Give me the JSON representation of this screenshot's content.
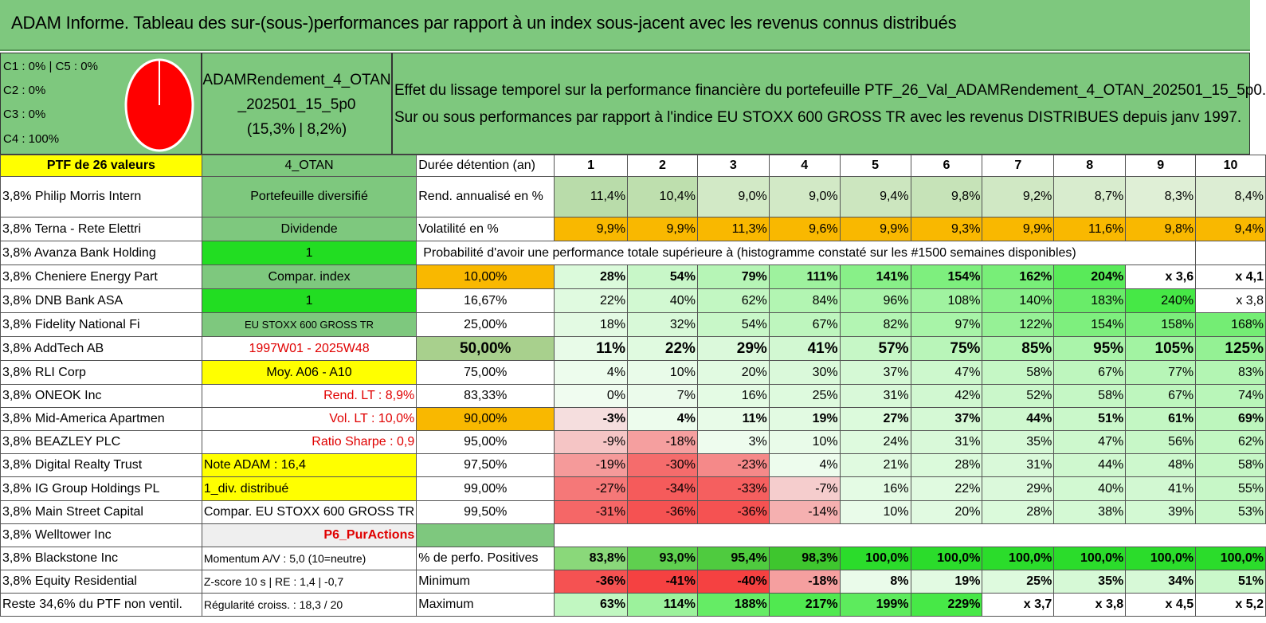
{
  "title": "ADAM Informe. Tableau des sur-(sous-)performances par rapport à un index sous-jacent avec les revenus connus distribués",
  "legend": [
    "C1 : 0% | C5 : 0%",
    "C2 : 0%",
    "C3 : 0%",
    "C4 : 100%"
  ],
  "pie_colors": {
    "fill": "#ff0000",
    "edge": "#ffffff"
  },
  "portfolio_name": [
    "ADAMRendement_4_OTAN",
    "_202501_15_5p0",
    "(15,3% | 8,2%)"
  ],
  "description": [
    "Effet du lissage temporel sur la performance financière du portefeuille PTF_26_Val_ADAMRendement_4_OTAN_202501_15_5p0.",
    "Sur ou sous performances par rapport à l'indice EU STOXX 600 GROSS TR avec les revenus DISTRIBUES depuis janv 1997."
  ],
  "header_row": {
    "col0": "PTF de 26 valeurs",
    "col1": "4_OTAN",
    "col2": "Durée détention (an)",
    "years": [
      "1",
      "2",
      "3",
      "4",
      "5",
      "6",
      "7",
      "8",
      "9",
      "10"
    ]
  },
  "holdings": [
    "3,8% Philip Morris Intern",
    "3,8% Terna - Rete Elettri",
    "3,8% Avanza Bank Holding",
    "3,8% Cheniere Energy Part",
    "3,8% DNB Bank ASA",
    "3,8% Fidelity National Fi",
    "3,8% AddTech AB",
    "3,8% RLI Corp",
    "3,8% ONEOK Inc",
    "3,8% Mid-America Apartmen",
    "3,8% BEAZLEY PLC",
    "3,8% Digital Realty Trust",
    "3,8% IG Group Holdings PL",
    "3,8% Main Street Capital",
    "3,8% Welltower Inc",
    "3,8% Blackstone Inc",
    "3,8% Equity Residential",
    "Reste 34,6% du PTF non ventil."
  ],
  "info_col": [
    "Portefeuille diversifié",
    "Dividende",
    "1",
    "Compar. index",
    "1",
    "EU STOXX 600 GROSS TR",
    "1997W01 - 2025W48",
    "Moy. A06 - A10",
    "Rend. LT : 8,9%",
    "Vol. LT : 10,0%",
    "Ratio Sharpe : 0,9",
    "Note ADAM : 16,4",
    "1_div. distribué",
    "Compar. EU STOXX 600 GROSS TR",
    "P6_PurActions",
    "Momentum A/V : 5,0 (10=neutre)",
    "Z-score 10 s | RE : 1,4 | -0,7",
    "Régularité croiss. : 18,3 / 20"
  ],
  "rend_row": {
    "label": "Rend. annualisé en %",
    "values": [
      "11,4%",
      "10,4%",
      "9,0%",
      "9,0%",
      "9,4%",
      "9,8%",
      "9,2%",
      "8,7%",
      "8,3%",
      "8,4%"
    ]
  },
  "vol_row": {
    "label": "Volatilité en %",
    "values": [
      "9,9%",
      "9,9%",
      "11,3%",
      "9,6%",
      "9,9%",
      "9,3%",
      "9,9%",
      "11,6%",
      "9,8%",
      "9,4%"
    ]
  },
  "proba_title": "Probabilité d'avoir une performance totale supérieure à (histogramme constaté sur les #1500 semaines disponibles)",
  "proba_rows": [
    {
      "p": "10,00%",
      "values": [
        "28%",
        "54%",
        "79%",
        "111%",
        "141%",
        "154%",
        "162%",
        "204%",
        "x 3,6",
        "x 4,1"
      ]
    },
    {
      "p": "16,67%",
      "values": [
        "22%",
        "40%",
        "62%",
        "84%",
        "96%",
        "108%",
        "140%",
        "183%",
        "240%",
        "x 3,8"
      ]
    },
    {
      "p": "25,00%",
      "values": [
        "18%",
        "32%",
        "54%",
        "67%",
        "82%",
        "97%",
        "122%",
        "154%",
        "158%",
        "168%"
      ]
    },
    {
      "p": "50,00%",
      "values": [
        "11%",
        "22%",
        "29%",
        "41%",
        "57%",
        "75%",
        "85%",
        "95%",
        "105%",
        "125%"
      ]
    },
    {
      "p": "75,00%",
      "values": [
        "4%",
        "10%",
        "20%",
        "30%",
        "37%",
        "47%",
        "58%",
        "67%",
        "77%",
        "83%"
      ]
    },
    {
      "p": "83,33%",
      "values": [
        "0%",
        "7%",
        "16%",
        "25%",
        "31%",
        "42%",
        "52%",
        "58%",
        "67%",
        "74%"
      ]
    },
    {
      "p": "90,00%",
      "values": [
        "-3%",
        "4%",
        "11%",
        "19%",
        "27%",
        "37%",
        "44%",
        "51%",
        "61%",
        "69%"
      ]
    },
    {
      "p": "95,00%",
      "values": [
        "-9%",
        "-18%",
        "3%",
        "10%",
        "24%",
        "31%",
        "35%",
        "47%",
        "56%",
        "62%"
      ]
    },
    {
      "p": "97,50%",
      "values": [
        "-19%",
        "-30%",
        "-23%",
        "4%",
        "21%",
        "28%",
        "31%",
        "44%",
        "48%",
        "58%"
      ]
    },
    {
      "p": "99,00%",
      "values": [
        "-27%",
        "-34%",
        "-33%",
        "-7%",
        "16%",
        "22%",
        "29%",
        "40%",
        "41%",
        "55%"
      ]
    },
    {
      "p": "99,50%",
      "values": [
        "-31%",
        "-36%",
        "-36%",
        "-14%",
        "10%",
        "20%",
        "28%",
        "38%",
        "39%",
        "53%"
      ]
    }
  ],
  "pos_row": {
    "label": "% de perfo. Positives",
    "values": [
      "83,8%",
      "93,0%",
      "95,4%",
      "98,3%",
      "100,0%",
      "100,0%",
      "100,0%",
      "100,0%",
      "100,0%",
      "100,0%"
    ]
  },
  "min_row": {
    "label": "Minimum",
    "values": [
      "-36%",
      "-41%",
      "-40%",
      "-18%",
      "8%",
      "19%",
      "25%",
      "35%",
      "34%",
      "51%"
    ]
  },
  "max_row": {
    "label": "Maximum",
    "values": [
      "63%",
      "114%",
      "188%",
      "217%",
      "199%",
      "229%",
      "x 3,7",
      "x 3,8",
      "x 4,5",
      "x 5,2"
    ]
  },
  "colors": {
    "title_bg": "#7ec87e",
    "yellow": "#ffff00",
    "orange": "#f9b800",
    "green_bright": "#22dd22",
    "red_strong": "#e84040",
    "green_pale": "#e8f8e8"
  }
}
